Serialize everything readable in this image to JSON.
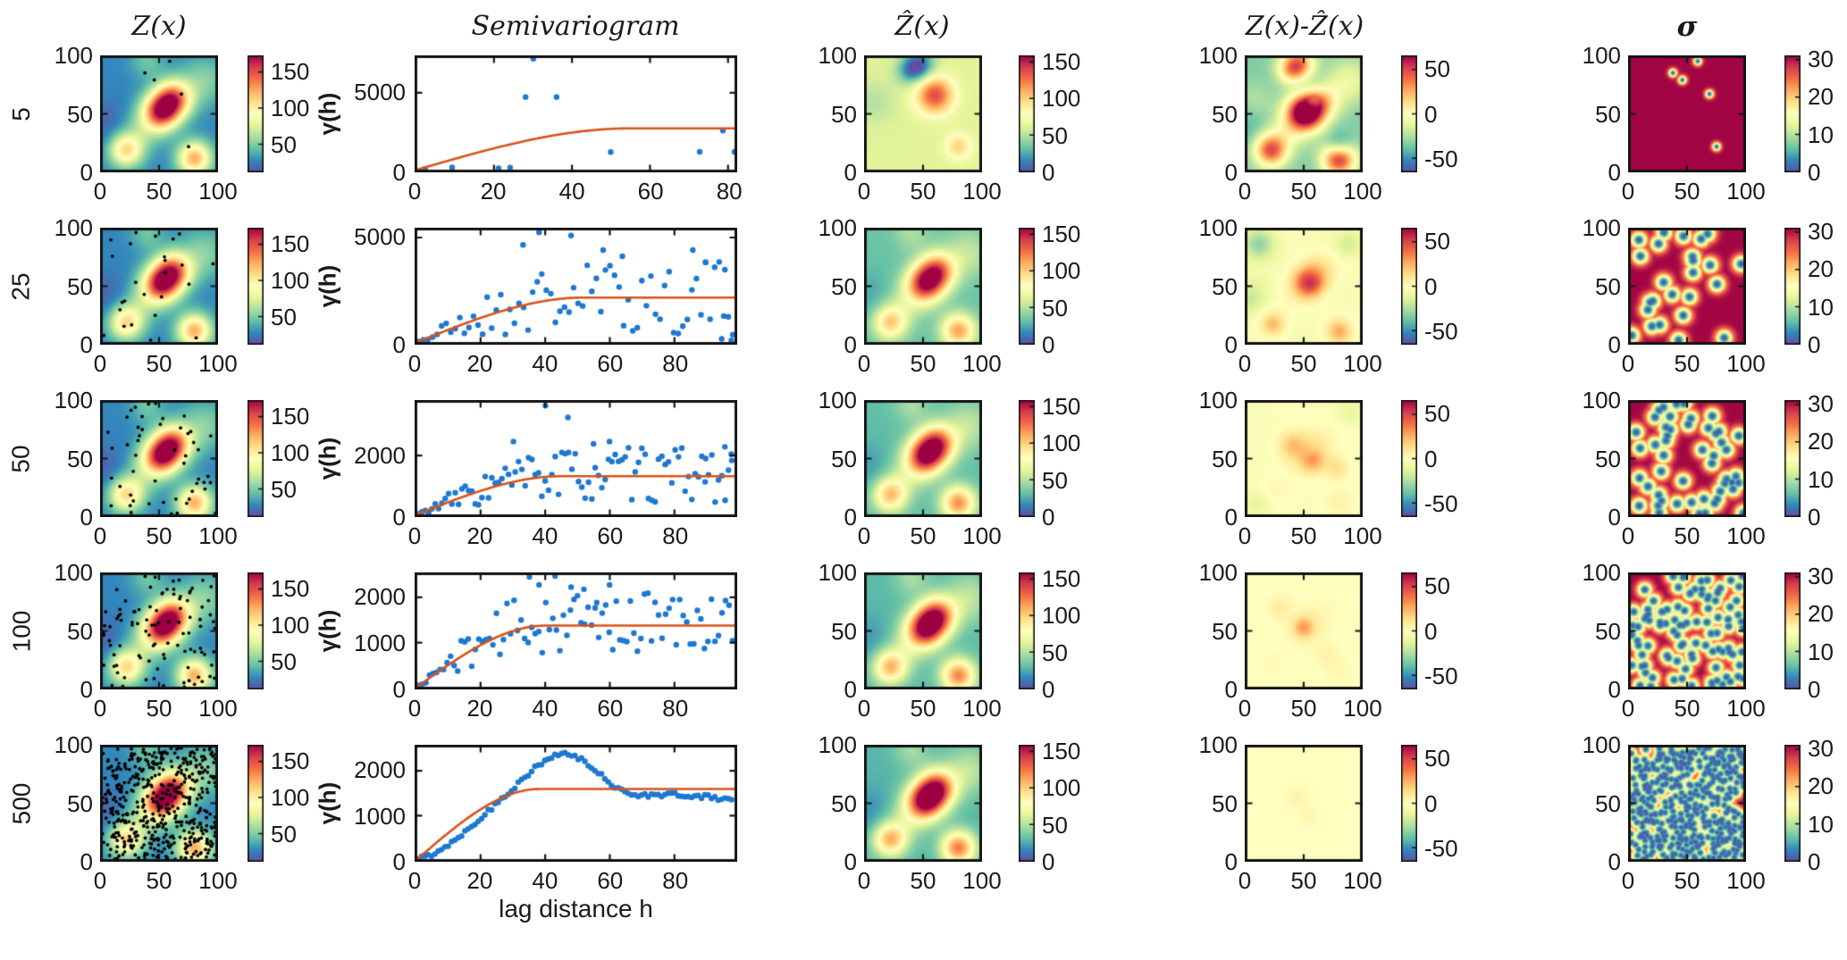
{
  "chart_data": {
    "type": "heatmap",
    "description": "Kriging demonstration grid: 5 rows (number of samples) x 5 columns (true field Z(x), empirical+model semivariogram, kriging estimate, error map, kriging std dev)",
    "columns": [
      {
        "title": "Z(x)"
      },
      {
        "title": "Semivariogram"
      },
      {
        "title": "Ẑ(x)"
      },
      {
        "title": "Z(x)-Ẑ(x)"
      },
      {
        "title": "σ"
      }
    ],
    "xlabel": "lag distance h",
    "ylabel": "γ(h)",
    "map_axis": {
      "xticks": [
        0,
        50,
        100
      ],
      "yticks": [
        0,
        50,
        100
      ],
      "xlim": [
        0,
        100
      ],
      "ylim": [
        0,
        100
      ]
    },
    "colormap_stops": [
      [
        0.0,
        "#5e4fa2"
      ],
      [
        0.1,
        "#3288bd"
      ],
      [
        0.2,
        "#66c2a5"
      ],
      [
        0.3,
        "#abdda4"
      ],
      [
        0.4,
        "#e6f598"
      ],
      [
        0.5,
        "#ffffbf"
      ],
      [
        0.6,
        "#fee08b"
      ],
      [
        0.7,
        "#fdae61"
      ],
      [
        0.8,
        "#f46d43"
      ],
      [
        0.9,
        "#d53e4f"
      ],
      [
        1.0,
        "#9e0142"
      ]
    ],
    "scatter_color": "#1e78d2",
    "model_color": "#d95319",
    "sample_dot_color": "#000000",
    "frame_color": "#151515",
    "domains": {
      "z": [
        12,
        172
      ],
      "zhat": [
        0,
        158
      ],
      "err": [
        -65,
        65
      ],
      "sigma": [
        0,
        31
      ]
    },
    "colorbars": {
      "z": {
        "ticks": [
          50,
          100,
          150
        ]
      },
      "zhat": {
        "ticks": [
          0,
          50,
          100,
          150
        ]
      },
      "err": {
        "ticks": [
          -50,
          0,
          50
        ]
      },
      "sigma": {
        "ticks": [
          0,
          10,
          20,
          30
        ]
      }
    },
    "true_field": {
      "base": 28,
      "blobs": [
        [
          51,
          51,
          120,
          11
        ],
        [
          62,
          63,
          110,
          11
        ],
        [
          22,
          19,
          80,
          10
        ],
        [
          80,
          12,
          95,
          10
        ],
        [
          88,
          78,
          25,
          14
        ],
        [
          40,
          95,
          18,
          10
        ],
        [
          35,
          35,
          20,
          12
        ],
        [
          5,
          40,
          -10,
          15
        ]
      ]
    },
    "sigma_max": 30.8,
    "rows": [
      {
        "label": "5",
        "n_samples": 5,
        "seed": 11,
        "sigma_radius": 3.4,
        "samples": [
          [
            38,
            85
          ],
          [
            46,
            79
          ],
          [
            59,
            95
          ],
          [
            69,
            67
          ],
          [
            75,
            22
          ]
        ],
        "zhat": {
          "custom": {
            "base": 62,
            "blobs": [
              [
                60,
                66,
                75,
                11
              ],
              [
                47,
                92,
                -55,
                9
              ],
              [
                38,
                86,
                -30,
                8
              ],
              [
                80,
                22,
                36,
                8
              ],
              [
                8,
                60,
                -12,
                12
              ]
            ]
          }
        },
        "err": {
          "extras": []
        },
        "semivariogram": {
          "ylim": 7300,
          "yticks": [
            0,
            5000
          ],
          "xmax": 82,
          "xticks": [
            0,
            20,
            40,
            60,
            80
          ],
          "model": {
            "sill": 2700,
            "range": 55
          },
          "points": [
            [
              2,
              40
            ],
            [
              9,
              150
            ],
            [
              21,
              90
            ],
            [
              24,
              130
            ],
            [
              28,
              4750
            ],
            [
              30,
              7250
            ],
            [
              36,
              4750
            ],
            [
              50,
              1150
            ],
            [
              73,
              1170
            ],
            [
              79,
              2560
            ],
            [
              82,
              1170
            ]
          ]
        }
      },
      {
        "label": "25",
        "n_samples": 25,
        "seed": 7,
        "sigma_radius": 6.5,
        "zhat": {
          "blend": 0.85
        },
        "err": {
          "blend": 0.85,
          "extras": [
            [
              55,
              53,
              38,
              8
            ],
            [
              12,
              86,
              -26,
              9
            ],
            [
              88,
              86,
              -16,
              8
            ],
            [
              24,
              17,
              15,
              6
            ],
            [
              80,
              11,
              17,
              6
            ],
            [
              5,
              40,
              -14,
              10
            ]
          ]
        },
        "semivariogram": {
          "ylim": 5400,
          "yticks": [
            0,
            5000
          ],
          "xmax": 99,
          "xticks": [
            0,
            20,
            40,
            60,
            80
          ],
          "model": {
            "sill": 2150,
            "range": 52
          },
          "gen": {
            "n": 70,
            "seed": 21,
            "h0": 0.5,
            "step": 1.42,
            "noise": [
              0.15,
              1.85
            ],
            "outliers": [
              [
                38,
                5300
              ],
              [
                48,
                5150
              ],
              [
                33,
                4700
              ],
              [
                58,
                4450
              ],
              [
                64,
                4150
              ],
              [
                86,
                4450
              ],
              [
                90,
                3850
              ],
              [
                96,
                3500
              ],
              [
                95,
                150
              ],
              [
                98,
                80
              ]
            ]
          }
        }
      },
      {
        "label": "50",
        "n_samples": 50,
        "seed": 5,
        "sigma_radius": 6.5,
        "zhat": {
          "blend": 0.92
        },
        "err": {
          "blend": 0.92,
          "extras": [
            [
              40,
              62,
              20,
              8
            ],
            [
              58,
              48,
              22,
              7
            ],
            [
              78,
              42,
              14,
              7
            ],
            [
              12,
              12,
              -12,
              8
            ],
            [
              90,
              90,
              -10,
              8
            ]
          ]
        },
        "semivariogram": {
          "ylim": 3800,
          "yticks": [
            0,
            2000
          ],
          "xmax": 99,
          "xticks": [
            0,
            20,
            40,
            60,
            80
          ],
          "model": {
            "sill": 1300,
            "range": 45
          },
          "gen": {
            "n": 95,
            "seed": 33,
            "h0": 0.4,
            "step": 1.04,
            "noise": [
              0.3,
              1.75
            ],
            "outliers": [
              [
                40,
                3700
              ],
              [
                47,
                3300
              ],
              [
                30,
                2480
              ],
              [
                55,
                2400
              ],
              [
                60,
                2480
              ],
              [
                96,
                2300
              ],
              [
                98,
                2050
              ],
              [
                90,
                1900
              ]
            ]
          }
        }
      },
      {
        "label": "100",
        "n_samples": 100,
        "seed": 3,
        "sigma_radius": 6.0,
        "zhat": {
          "blend": 0.96
        },
        "err": {
          "blend": 0.96,
          "extras": [
            [
              50,
              53,
              26,
              6
            ],
            [
              30,
              70,
              8,
              8
            ],
            [
              70,
              30,
              6,
              8
            ]
          ]
        },
        "semivariogram": {
          "ylim": 2520,
          "yticks": [
            0,
            1000,
            2000
          ],
          "xmax": 99,
          "xticks": [
            0,
            20,
            40,
            60,
            80
          ],
          "model": {
            "sill": 1380,
            "range": 40
          },
          "gen": {
            "n": 90,
            "seed": 44,
            "h0": 0.5,
            "step": 1.1,
            "noise": [
              0.55,
              1.55
            ],
            "outliers": [
              [
                35,
                2480
              ],
              [
                43,
                2500
              ],
              [
                38,
                2300
              ],
              [
                48,
                2250
              ],
              [
                52,
                2200
              ],
              [
                60,
                2300
              ],
              [
                56,
                1900
              ]
            ]
          }
        }
      },
      {
        "label": "500",
        "n_samples": 500,
        "seed": 9,
        "sigma_radius": 5.0,
        "zhat": {
          "blend": 1.0
        },
        "err": {
          "blend": 1.0,
          "extras": [
            [
              45,
              55,
              5,
              6
            ],
            [
              55,
              40,
              4,
              5
            ]
          ]
        },
        "semivariogram": {
          "ylim": 2550,
          "yticks": [
            0,
            1000,
            2000
          ],
          "xmax": 99,
          "xticks": [
            0,
            20,
            40,
            60,
            80
          ],
          "model": {
            "sill": 1600,
            "range": 38
          },
          "gen": {
            "n": 95,
            "seed": 55,
            "h0": 0.3,
            "step": 1.04,
            "noise_abs": 50,
            "anchors": [
              [
                0,
                0
              ],
              [
                3,
                60
              ],
              [
                6,
                160
              ],
              [
                9,
                300
              ],
              [
                12,
                460
              ],
              [
                15,
                640
              ],
              [
                18,
                830
              ],
              [
                21,
                1020
              ],
              [
                24,
                1220
              ],
              [
                27,
                1420
              ],
              [
                30,
                1630
              ],
              [
                33,
                1840
              ],
              [
                36,
                2040
              ],
              [
                39,
                2200
              ],
              [
                42,
                2320
              ],
              [
                45,
                2400
              ],
              [
                48,
                2380
              ],
              [
                51,
                2280
              ],
              [
                54,
                2120
              ],
              [
                57,
                1930
              ],
              [
                60,
                1750
              ],
              [
                63,
                1600
              ],
              [
                66,
                1510
              ],
              [
                69,
                1470
              ],
              [
                72,
                1450
              ],
              [
                75,
                1460
              ],
              [
                78,
                1490
              ],
              [
                81,
                1480
              ],
              [
                84,
                1440
              ],
              [
                87,
                1410
              ],
              [
                90,
                1430
              ],
              [
                93,
                1400
              ],
              [
                96,
                1370
              ],
              [
                99,
                1330
              ]
            ],
            "outliers": []
          }
        }
      }
    ]
  }
}
